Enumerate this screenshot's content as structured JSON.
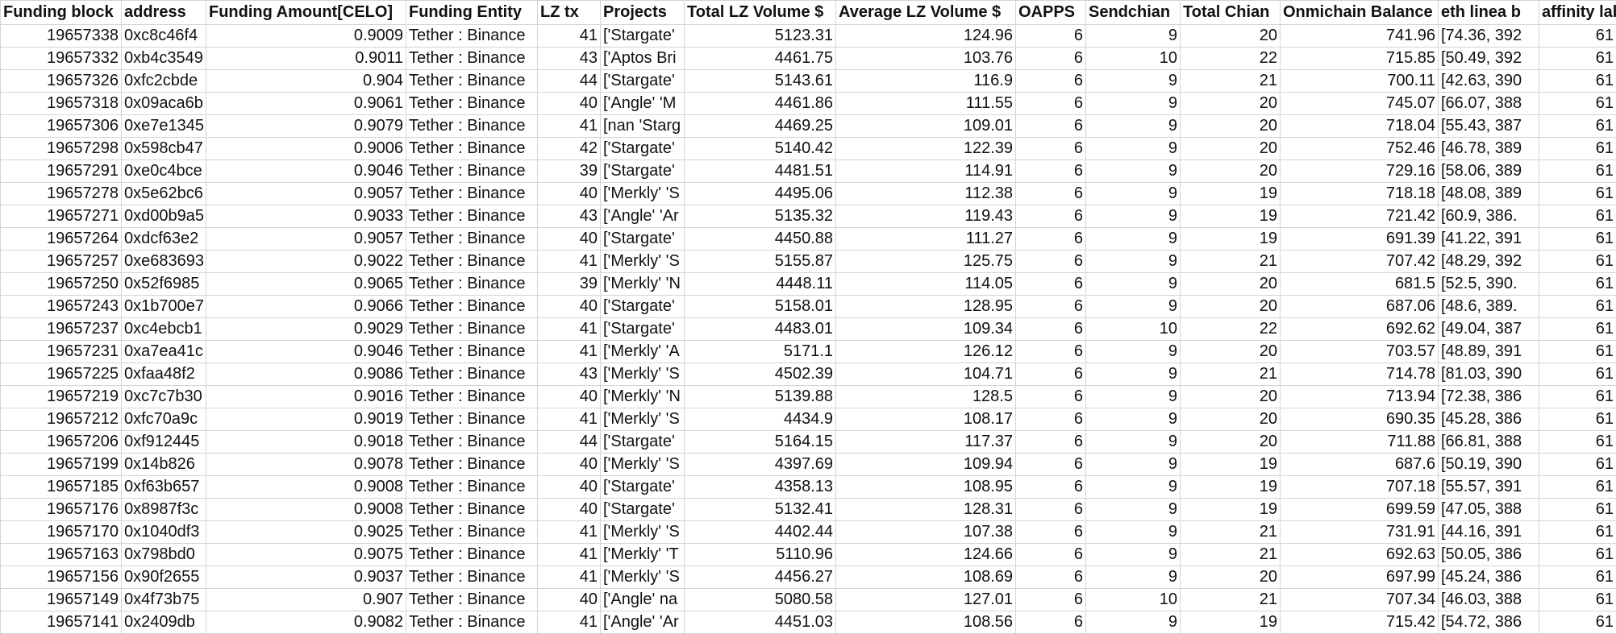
{
  "columns": [
    "Funding block",
    "address",
    "Funding Amount[CELO]",
    "Funding Entity",
    "LZ tx",
    "Projects",
    "Total LZ Volume $",
    "Average LZ Volume $",
    "OAPPS",
    "Sendchian",
    "Total Chian",
    "Onmichain Balance",
    "eth linea b",
    "affinity label"
  ],
  "rows": [
    [
      "19657338",
      "0xc8c46f4",
      "0.9009",
      "Tether : Binance",
      "41",
      "['Stargate'",
      "5123.31",
      "124.96",
      "6",
      "9",
      "20",
      "741.96",
      "[74.36, 392",
      "61"
    ],
    [
      "19657332",
      "0xb4c3549",
      "0.9011",
      "Tether : Binance",
      "43",
      "['Aptos Bri",
      "4461.75",
      "103.76",
      "6",
      "10",
      "22",
      "715.85",
      "[50.49, 392",
      "61"
    ],
    [
      "19657326",
      "0xfc2cbde",
      "0.904",
      "Tether : Binance",
      "44",
      "['Stargate'",
      "5143.61",
      "116.9",
      "6",
      "9",
      "21",
      "700.11",
      "[42.63, 390",
      "61"
    ],
    [
      "19657318",
      "0x09aca6b",
      "0.9061",
      "Tether : Binance",
      "40",
      "['Angle' 'M",
      "4461.86",
      "111.55",
      "6",
      "9",
      "20",
      "745.07",
      "[66.07, 388",
      "61"
    ],
    [
      "19657306",
      "0xe7e1345",
      "0.9079",
      "Tether : Binance",
      "41",
      "[nan 'Starg",
      "4469.25",
      "109.01",
      "6",
      "9",
      "20",
      "718.04",
      "[55.43, 387",
      "61"
    ],
    [
      "19657298",
      "0x598cb47",
      "0.9006",
      "Tether : Binance",
      "42",
      "['Stargate'",
      "5140.42",
      "122.39",
      "6",
      "9",
      "20",
      "752.46",
      "[46.78, 389",
      "61"
    ],
    [
      "19657291",
      "0xe0c4bce",
      "0.9046",
      "Tether : Binance",
      "39",
      "['Stargate'",
      "4481.51",
      "114.91",
      "6",
      "9",
      "20",
      "729.16",
      "[58.06, 389",
      "61"
    ],
    [
      "19657278",
      "0x5e62bc6",
      "0.9057",
      "Tether : Binance",
      "40",
      "['Merkly' 'S",
      "4495.06",
      "112.38",
      "6",
      "9",
      "19",
      "718.18",
      "[48.08, 389",
      "61"
    ],
    [
      "19657271",
      "0xd00b9a5",
      "0.9033",
      "Tether : Binance",
      "43",
      "['Angle' 'Ar",
      "5135.32",
      "119.43",
      "6",
      "9",
      "19",
      "721.42",
      "[60.9, 386.",
      "61"
    ],
    [
      "19657264",
      "0xdcf63e2",
      "0.9057",
      "Tether : Binance",
      "40",
      "['Stargate'",
      "4450.88",
      "111.27",
      "6",
      "9",
      "19",
      "691.39",
      "[41.22, 391",
      "61"
    ],
    [
      "19657257",
      "0xe683693",
      "0.9022",
      "Tether : Binance",
      "41",
      "['Merkly' 'S",
      "5155.87",
      "125.75",
      "6",
      "9",
      "21",
      "707.42",
      "[48.29, 392",
      "61"
    ],
    [
      "19657250",
      "0x52f6985",
      "0.9065",
      "Tether : Binance",
      "39",
      "['Merkly' 'N",
      "4448.11",
      "114.05",
      "6",
      "9",
      "20",
      "681.5",
      "[52.5, 390.",
      "61"
    ],
    [
      "19657243",
      "0x1b700e7",
      "0.9066",
      "Tether : Binance",
      "40",
      "['Stargate'",
      "5158.01",
      "128.95",
      "6",
      "9",
      "20",
      "687.06",
      "[48.6, 389.",
      "61"
    ],
    [
      "19657237",
      "0xc4ebcb1",
      "0.9029",
      "Tether : Binance",
      "41",
      "['Stargate'",
      "4483.01",
      "109.34",
      "6",
      "10",
      "22",
      "692.62",
      "[49.04, 387",
      "61"
    ],
    [
      "19657231",
      "0xa7ea41c",
      "0.9046",
      "Tether : Binance",
      "41",
      "['Merkly' 'A",
      "5171.1",
      "126.12",
      "6",
      "9",
      "20",
      "703.57",
      "[48.89, 391",
      "61"
    ],
    [
      "19657225",
      "0xfaa48f2",
      "0.9086",
      "Tether : Binance",
      "43",
      "['Merkly' 'S",
      "4502.39",
      "104.71",
      "6",
      "9",
      "21",
      "714.78",
      "[81.03, 390",
      "61"
    ],
    [
      "19657219",
      "0xc7c7b30",
      "0.9016",
      "Tether : Binance",
      "40",
      "['Merkly' 'N",
      "5139.88",
      "128.5",
      "6",
      "9",
      "20",
      "713.94",
      "[72.38, 386",
      "61"
    ],
    [
      "19657212",
      "0xfc70a9c",
      "0.9019",
      "Tether : Binance",
      "41",
      "['Merkly' 'S",
      "4434.9",
      "108.17",
      "6",
      "9",
      "20",
      "690.35",
      "[45.28, 386",
      "61"
    ],
    [
      "19657206",
      "0xf912445",
      "0.9018",
      "Tether : Binance",
      "44",
      "['Stargate'",
      "5164.15",
      "117.37",
      "6",
      "9",
      "20",
      "711.88",
      "[66.81, 388",
      "61"
    ],
    [
      "19657199",
      "0x14b826",
      "0.9078",
      "Tether : Binance",
      "40",
      "['Merkly' 'S",
      "4397.69",
      "109.94",
      "6",
      "9",
      "19",
      "687.6",
      "[50.19, 390",
      "61"
    ],
    [
      "19657185",
      "0xf63b657",
      "0.9008",
      "Tether : Binance",
      "40",
      "['Stargate'",
      "4358.13",
      "108.95",
      "6",
      "9",
      "19",
      "707.18",
      "[55.57, 391",
      "61"
    ],
    [
      "19657176",
      "0x8987f3c",
      "0.9008",
      "Tether : Binance",
      "40",
      "['Stargate'",
      "5132.41",
      "128.31",
      "6",
      "9",
      "19",
      "699.59",
      "[47.05, 388",
      "61"
    ],
    [
      "19657170",
      "0x1040df3",
      "0.9025",
      "Tether : Binance",
      "41",
      "['Merkly' 'S",
      "4402.44",
      "107.38",
      "6",
      "9",
      "21",
      "731.91",
      "[44.16, 391",
      "61"
    ],
    [
      "19657163",
      "0x798bd0",
      "0.9075",
      "Tether : Binance",
      "41",
      "['Merkly' 'T",
      "5110.96",
      "124.66",
      "6",
      "9",
      "21",
      "692.63",
      "[50.05, 386",
      "61"
    ],
    [
      "19657156",
      "0x90f2655",
      "0.9037",
      "Tether : Binance",
      "41",
      "['Merkly' 'S",
      "4456.27",
      "108.69",
      "6",
      "9",
      "20",
      "697.99",
      "[45.24, 386",
      "61"
    ],
    [
      "19657149",
      "0x4f73b75",
      "0.907",
      "Tether : Binance",
      "40",
      "['Angle' na",
      "5080.58",
      "127.01",
      "6",
      "10",
      "21",
      "707.34",
      "[46.03, 388",
      "61"
    ],
    [
      "19657141",
      "0x2409db",
      "0.9082",
      "Tether : Binance",
      "41",
      "['Angle' 'Ar",
      "4451.03",
      "108.56",
      "6",
      "9",
      "19",
      "715.42",
      "[54.72, 386",
      "61"
    ]
  ]
}
